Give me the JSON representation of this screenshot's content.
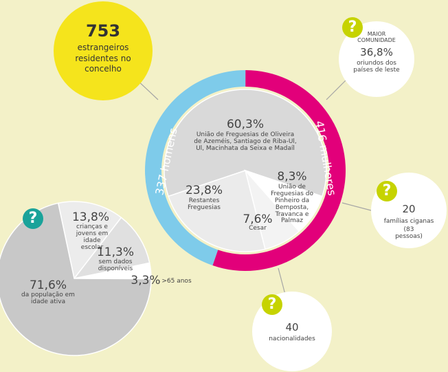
{
  "chart_data": [
    {
      "type": "donut",
      "values": [
        337,
        416
      ],
      "value_labels": [
        "337 homens",
        "416 mulheres"
      ],
      "colors": [
        "#7ecbea",
        "#e2007a"
      ]
    },
    {
      "type": "pie",
      "values": [
        60.3,
        8.3,
        7.6,
        23.8
      ],
      "value_labels": [
        "60,3%",
        "8,3%",
        "7,6%",
        "23,8%"
      ],
      "categories": [
        "União de Freguesias de Oliveira de Azeméis, Santiago de Riba-Ul, Ul, Macinhata da Seixa e Madaíl",
        "União de Freguesias do Pinheiro da Bemposta, Travanca e Palmaz",
        "Cesar",
        "Restantes Freguesias"
      ],
      "colors": [
        "#d9d9d9",
        "#ffffff",
        "#f3f3f3",
        "#ebebeb"
      ]
    },
    {
      "type": "pie",
      "values": [
        13.8,
        11.3,
        3.3,
        71.6
      ],
      "value_labels": [
        "13,8%",
        "11,3%",
        "3,3%",
        "71,6%"
      ],
      "categories": [
        "crianças e jovens em idade escolar",
        "sem dados disponíveis",
        ">65 anos",
        "da população em idade ativa"
      ],
      "colors": [
        "#ececec",
        "#e0e0e0",
        "#ffffff",
        "#c8c8c8"
      ]
    }
  ],
  "badge": "?",
  "total": {
    "value": "753",
    "text": "estrangeiros residentes no concelho"
  },
  "community": {
    "heading": "MAIOR COMUNIDADE",
    "value": "36,8%",
    "text": "oriundos dos países de leste"
  },
  "gypsy": {
    "value": "20",
    "text": "famílias ciganas",
    "note": "(83 pessoas)"
  },
  "nationalities": {
    "value": "40",
    "text": "nacionalidades"
  }
}
